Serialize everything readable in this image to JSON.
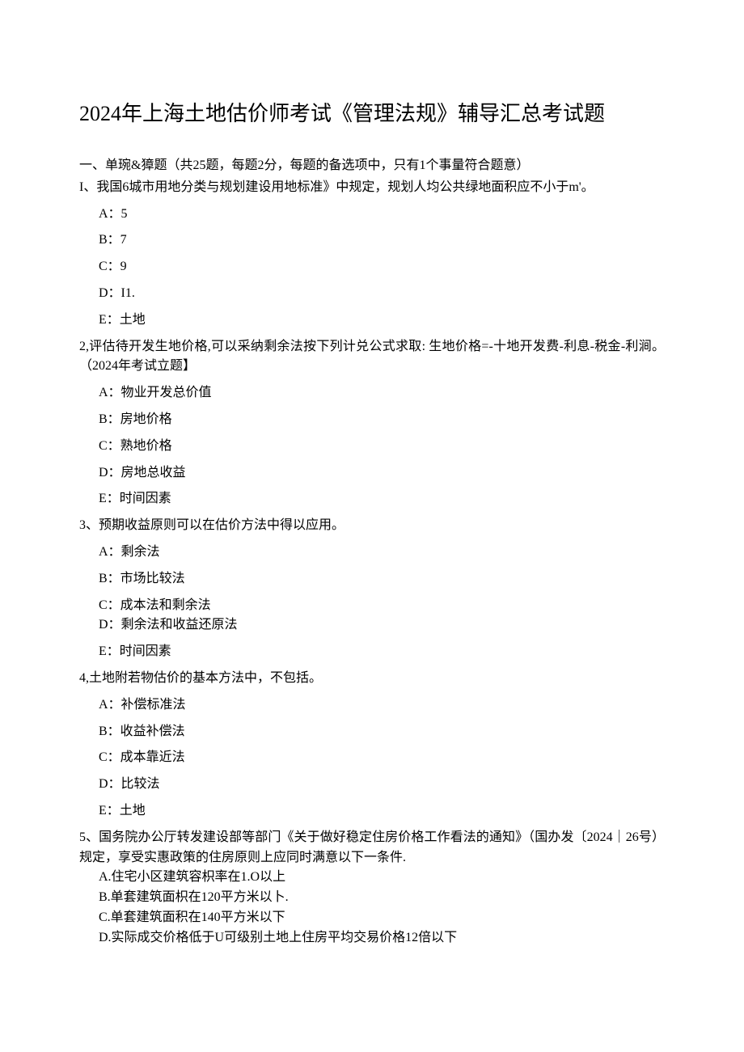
{
  "title": "2024年上海土地估价师考试《管理法规》辅导汇总考试题",
  "section_intro": "一、单琬&獐题（共25题，每题2分，每题的备选项中，只有1个事量符合题意）",
  "questions": [
    {
      "text_lines": [
        "I、我国6城市用地分类与规划建设用地标准》中规定，规划人均公共绿地面积应不小于m'。"
      ],
      "options_spaced": true,
      "options": [
        "A：5",
        "B：7",
        "C：9",
        "D：I1.",
        "E：土地"
      ]
    },
    {
      "text_lines": [
        "2,评估待开发生地价格,可以采纳剩余法按下列计兑公式求取: 生地价格=-十地开发费-利息-税金-利涧。（2024年考试立题】"
      ],
      "options_spaced": true,
      "options": [
        "A：物业开发总价值",
        "B：房地价格",
        "C：熟地价格",
        "D：房地总收益",
        "E：时间因素"
      ]
    },
    {
      "text_lines": [
        "3、预期收益原则可以在估价方法中得以应用。"
      ],
      "options_spaced": true,
      "options": [
        "A：剩余法",
        "B：市场比较法"
      ],
      "tight_options": [
        "C：成本法和剩余法",
        "D：剩余法和收益还原法"
      ],
      "post_options_spaced": [
        "E：时间因素"
      ]
    },
    {
      "text_lines": [
        "4,土地附若物估价的基本方法中，不包括。"
      ],
      "options_spaced": true,
      "options": [
        "A：补偿标准法",
        "B：收益补偿法",
        "C：成本靠近法",
        "D：比较法",
        "E：土地"
      ]
    },
    {
      "text_lines": [
        "5、国务院办公厅转发建设部等部门《关于做好稳定住房价格工作看法的通知》（国办发〔2024｜26号）规定，享受实惠政策的住房原则上应同时满意以下一条件."
      ],
      "options_spaced": false,
      "options": [
        "A.住宅小区建筑容枳率在1.O以上",
        "B.单套建筑面枳在120平方米以卜.",
        "C.单套建筑面积在140平方米以下",
        "D.实际成交价格低于U可级别土地上住房平均交易价格12倍以下"
      ]
    }
  ],
  "colors": {
    "text": "#000000",
    "background": "#ffffff"
  },
  "typography": {
    "title_fontsize": 26,
    "body_fontsize": 16,
    "font_family": "SimSun"
  }
}
